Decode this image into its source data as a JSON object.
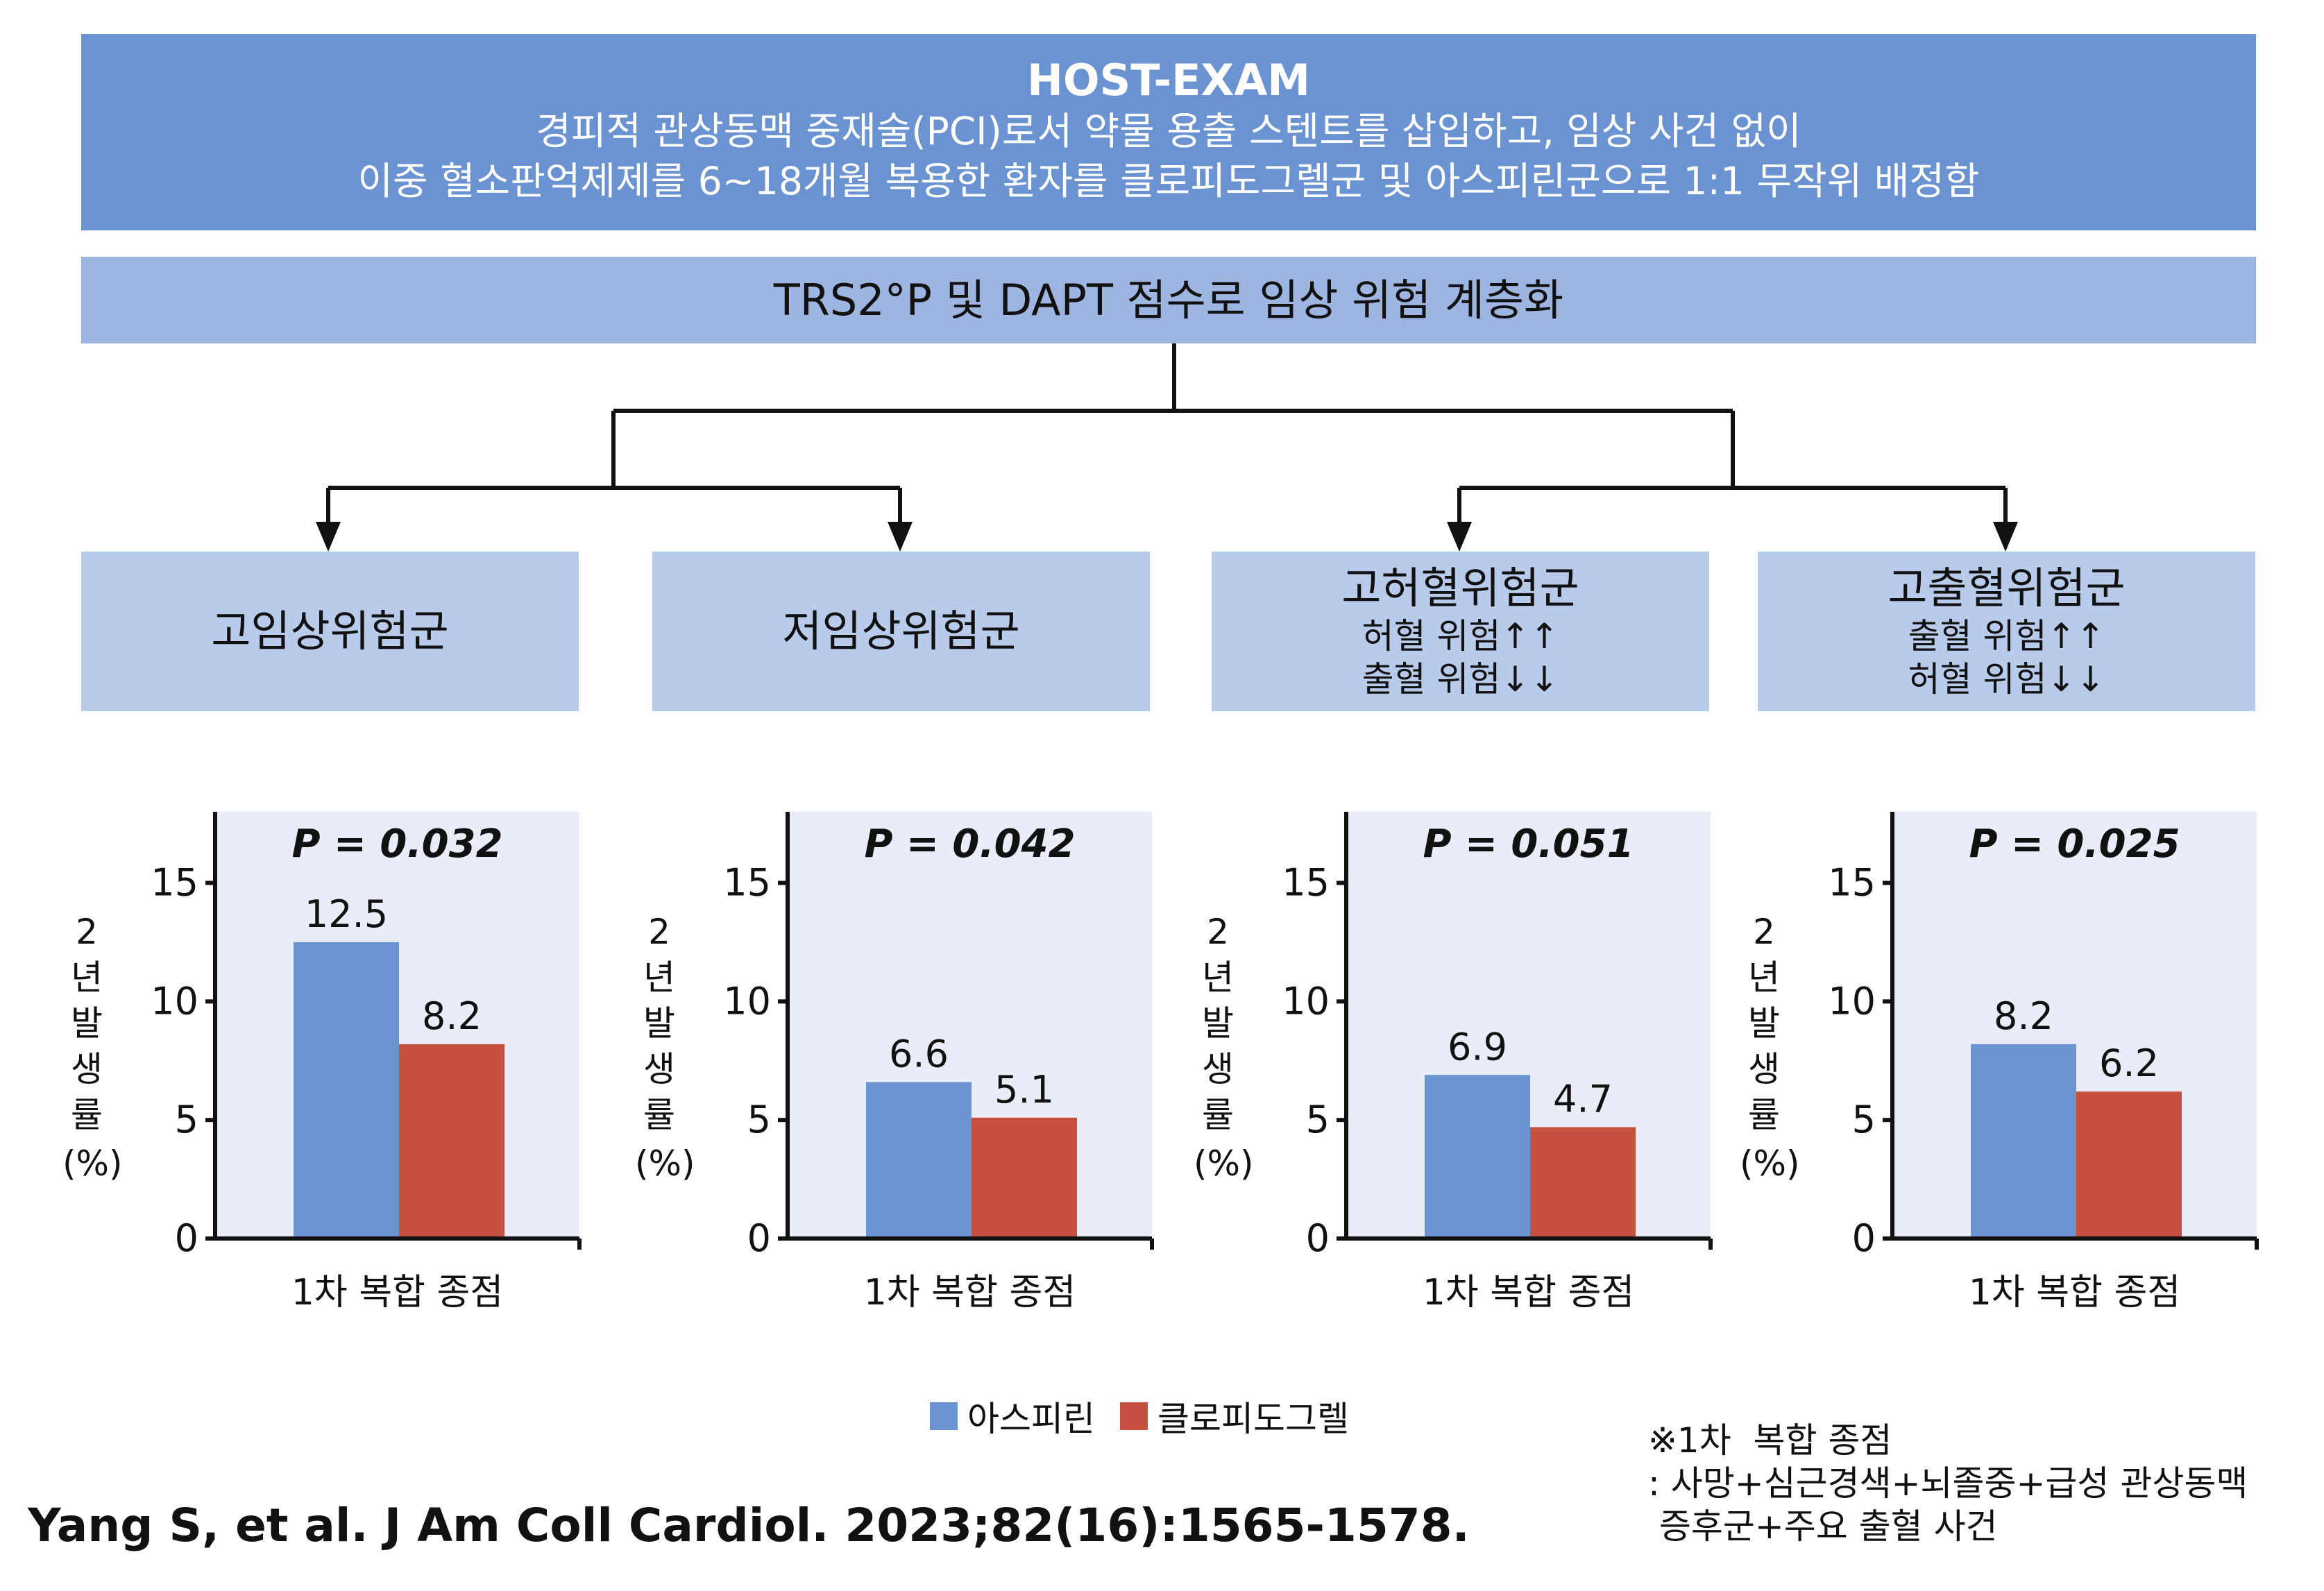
{
  "header": {
    "title": "HOST-EXAM",
    "line1": "경피적 관상동맥 중재술(PCI)로서 약물 용출 스텐트를 삽입하고, 임상 사건 없이",
    "line2": "이중 혈소판억제제를 6~18개월 복용한 환자를 클로피도그렐군 및 아스피린군으로 1:1 무작위 배정함"
  },
  "stratification": "TRS2°P 및 DAPT 점수로 임상 위험 계층화",
  "groups": [
    {
      "name": "고임상위험군",
      "sub1": "",
      "sub2": ""
    },
    {
      "name": "저임상위험군",
      "sub1": "",
      "sub2": ""
    },
    {
      "name": "고허혈위험군",
      "sub1": "허혈 위험↑↑",
      "sub2": "출혈 위험↓↓"
    },
    {
      "name": "고출혈위험군",
      "sub1": "출혈 위험↑↑",
      "sub2": "허혈 위험↓↓"
    }
  ],
  "colors": {
    "aspirin": "#6b93d1",
    "clopidogrel": "#c65140",
    "panel": "#e9edf8",
    "header": "#6b93d1",
    "strat": "#9db5e0",
    "group": "#b9cbea"
  },
  "y_label_chars": [
    "2",
    "년",
    "발",
    "생",
    "률",
    "(%)"
  ],
  "chart_data": [
    {
      "type": "bar",
      "title": "P = 0.032",
      "categories": [
        "1차  복합 종점"
      ],
      "xlabel": "1차  복합 종점",
      "ylabel": "2년 발생률 (%)",
      "ylim": [
        0,
        18
      ],
      "yticks": [
        0,
        5,
        10,
        15
      ],
      "series": [
        {
          "name": "아스피린",
          "values": [
            12.5
          ]
        },
        {
          "name": "클로피도그렐",
          "values": [
            8.2
          ]
        }
      ]
    },
    {
      "type": "bar",
      "title": "P = 0.042",
      "categories": [
        "1차  복합 종점"
      ],
      "xlabel": "1차  복합 종점",
      "ylabel": "2년 발생률 (%)",
      "ylim": [
        0,
        18
      ],
      "yticks": [
        0,
        5,
        10,
        15
      ],
      "series": [
        {
          "name": "아스피린",
          "values": [
            6.6
          ]
        },
        {
          "name": "클로피도그렐",
          "values": [
            5.1
          ]
        }
      ]
    },
    {
      "type": "bar",
      "title": "P = 0.051",
      "categories": [
        "1차  복합 종점"
      ],
      "xlabel": "1차  복합 종점",
      "ylabel": "2년 발생률 (%)",
      "ylim": [
        0,
        18
      ],
      "yticks": [
        0,
        5,
        10,
        15
      ],
      "series": [
        {
          "name": "아스피린",
          "values": [
            6.9
          ]
        },
        {
          "name": "클로피도그렐",
          "values": [
            4.7
          ]
        }
      ]
    },
    {
      "type": "bar",
      "title": "P = 0.025",
      "categories": [
        "1차  복합 종점"
      ],
      "xlabel": "1차  복합 종점",
      "ylabel": "2년 발생률 (%)",
      "ylim": [
        0,
        18
      ],
      "yticks": [
        0,
        5,
        10,
        15
      ],
      "series": [
        {
          "name": "아스피린",
          "values": [
            8.2
          ]
        },
        {
          "name": "클로피도그렐",
          "values": [
            6.2
          ]
        }
      ]
    }
  ],
  "legend": {
    "aspirin": "아스피린",
    "clopidogrel": "클로피도그렐"
  },
  "citation": "Yang S, et al. J Am Coll Cardiol. 2023;82(16):1565-1578.",
  "note": {
    "line1": "※1차  복합 종점",
    "line2": ": 사망+심근경색+뇌졸중+급성 관상동맥",
    "line3": " 증후군+주요 출혈 사건"
  }
}
